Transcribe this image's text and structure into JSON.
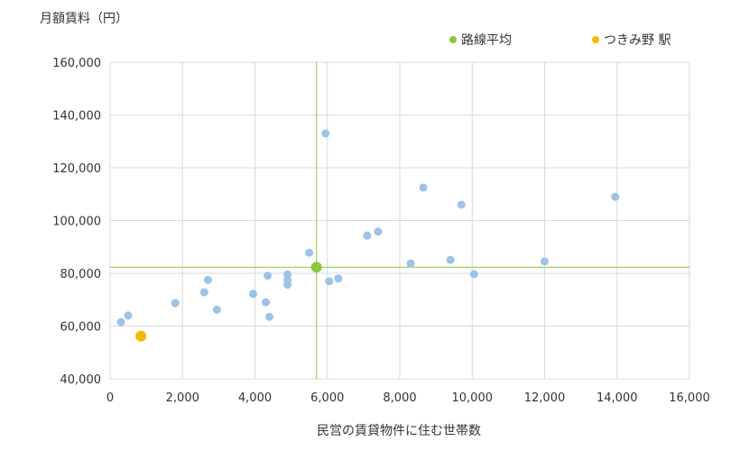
{
  "chart_data": {
    "type": "scatter",
    "ylabel": "月額賃料（円）",
    "xlabel": "民営の賃貸物件に住む世帯数",
    "xlim": [
      0,
      16000
    ],
    "ylim": [
      40000,
      160000
    ],
    "xticks": [
      0,
      2000,
      4000,
      6000,
      8000,
      10000,
      12000,
      14000,
      16000
    ],
    "yticks": [
      40000,
      60000,
      80000,
      100000,
      120000,
      140000,
      160000
    ],
    "xtick_labels": [
      "0",
      "2,000",
      "4,000",
      "6,000",
      "8,000",
      "10,000",
      "12,000",
      "14,000",
      "16,000"
    ],
    "ytick_labels": [
      "40,000",
      "60,000",
      "80,000",
      "100,000",
      "120,000",
      "140,000",
      "160,000"
    ],
    "grid": true,
    "legend_position": "top-right",
    "legend": [
      {
        "label": "路線平均",
        "color": "#8dc63f"
      },
      {
        "label": "つきみ野 駅",
        "color": "#f5b800"
      }
    ],
    "colors": {
      "points": "#9dc3e6",
      "average": "#8dc63f",
      "highlight": "#f5b800",
      "grid": "#d9d9d9"
    },
    "series": [
      {
        "points": [
          {
            "x": 300,
            "y": 61500
          },
          {
            "x": 500,
            "y": 64000
          },
          {
            "x": 1800,
            "y": 68700
          },
          {
            "x": 2600,
            "y": 72800
          },
          {
            "x": 2700,
            "y": 77500
          },
          {
            "x": 2950,
            "y": 66200
          },
          {
            "x": 3950,
            "y": 72200
          },
          {
            "x": 4300,
            "y": 69000
          },
          {
            "x": 4350,
            "y": 79100
          },
          {
            "x": 4400,
            "y": 63500
          },
          {
            "x": 4900,
            "y": 79600
          },
          {
            "x": 4900,
            "y": 77500
          },
          {
            "x": 4900,
            "y": 75700
          },
          {
            "x": 5500,
            "y": 87800
          },
          {
            "x": 5950,
            "y": 133000
          },
          {
            "x": 6050,
            "y": 77000
          },
          {
            "x": 6300,
            "y": 78000
          },
          {
            "x": 7100,
            "y": 94300
          },
          {
            "x": 7400,
            "y": 95800
          },
          {
            "x": 8300,
            "y": 83700
          },
          {
            "x": 8650,
            "y": 112500
          },
          {
            "x": 9400,
            "y": 85100
          },
          {
            "x": 9700,
            "y": 106000
          },
          {
            "x": 10050,
            "y": 79700
          },
          {
            "x": 12000,
            "y": 84500
          },
          {
            "x": 13950,
            "y": 109000
          }
        ]
      },
      {
        "name": "路線平均",
        "points": [
          {
            "x": 5700,
            "y": 82300
          }
        ]
      },
      {
        "name": "つきみ野 駅",
        "points": [
          {
            "x": 850,
            "y": 56200
          }
        ]
      }
    ],
    "reference_lines": {
      "x": 5700,
      "y": 82300
    }
  }
}
